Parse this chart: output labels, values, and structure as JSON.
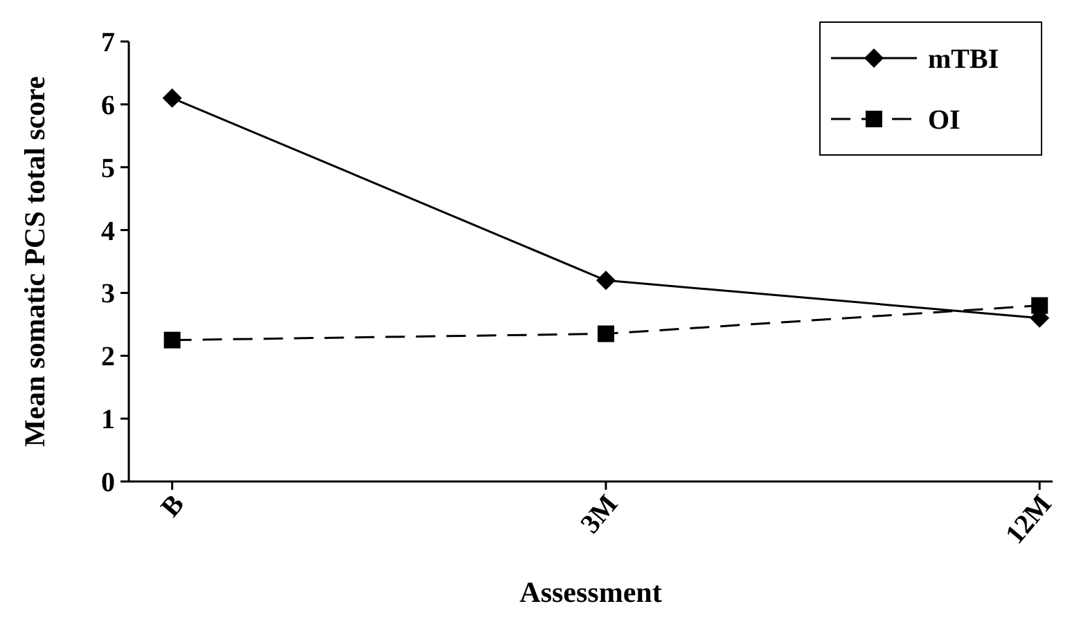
{
  "chart_data": {
    "type": "line",
    "xlabel": "Assessment",
    "ylabel": "Mean somatic PCS total score",
    "categories": [
      "B",
      "3M",
      "12M"
    ],
    "ylim": [
      0,
      7
    ],
    "yticks": [
      0,
      1,
      2,
      3,
      4,
      5,
      6,
      7
    ],
    "grid": false,
    "legend": "top right",
    "series": [
      {
        "name": "mTBI",
        "color": "#000000",
        "values": [
          6.1,
          3.2,
          2.6
        ],
        "marker": "diamond",
        "line_style": "solid"
      },
      {
        "name": "OI",
        "color": "#000000",
        "values": [
          2.25,
          2.35,
          2.8
        ],
        "marker": "square",
        "line_style": "dashed"
      }
    ]
  }
}
